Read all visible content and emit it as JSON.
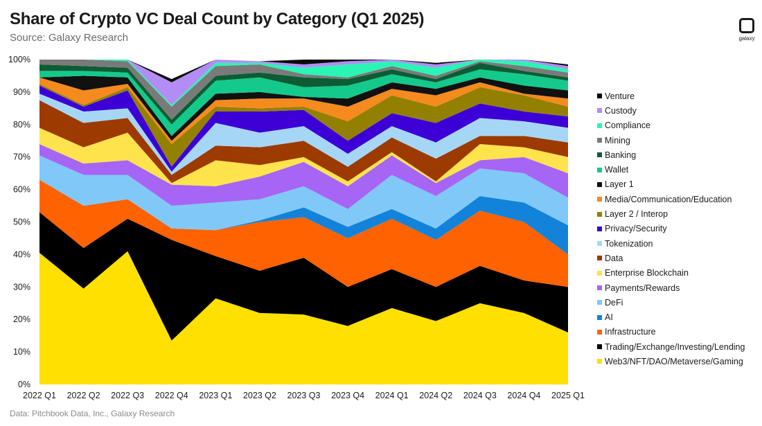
{
  "header": {
    "title": "Share of Crypto VC Deal Count by Category (Q1 2025)",
    "subtitle": "Source: Galaxy Research"
  },
  "footer": {
    "source": "Data: Pitchbook Data, Inc., Galaxy Research"
  },
  "logo": {
    "text": "galaxy",
    "icon": "galaxy-logo-icon"
  },
  "chart_data": {
    "type": "area",
    "stacked": true,
    "title": "Share of Crypto VC Deal Count by Category (Q1 2025)",
    "subtitle": "Source: Galaxy Research",
    "xlabel": "",
    "ylabel": "",
    "ylim": [
      0,
      100
    ],
    "y_ticks": [
      "0%",
      "10%",
      "20%",
      "30%",
      "40%",
      "50%",
      "60%",
      "70%",
      "80%",
      "90%",
      "100%"
    ],
    "grid": false,
    "legend_position": "right",
    "categories": [
      "2022 Q1",
      "2022 Q2",
      "2022 Q3",
      "2022 Q4",
      "2023 Q1",
      "2023 Q2",
      "2023 Q3",
      "2023 Q4",
      "2024 Q1",
      "2024 Q2",
      "2024 Q3",
      "2024 Q4",
      "2025 Q1"
    ],
    "series": [
      {
        "name": "Web3/NFT/DAO/Metaverse/Gaming",
        "color": "#FFE000",
        "values": [
          40.5,
          29.5,
          41,
          13.5,
          26.5,
          22,
          21.5,
          18,
          23.5,
          19.5,
          25,
          22,
          16
        ]
      },
      {
        "name": "Trading/Exchange/Investing/Lending",
        "color": "#000000",
        "values": [
          12.5,
          12.5,
          10,
          31,
          13,
          13,
          17.5,
          12,
          12,
          10.5,
          11.5,
          10,
          14
        ]
      },
      {
        "name": "Infrastructure",
        "color": "#FF6200",
        "values": [
          10,
          13,
          6,
          3.5,
          8,
          15,
          12.5,
          15,
          15.5,
          14.5,
          17,
          18,
          10
        ]
      },
      {
        "name": "AI",
        "color": "#1283D8",
        "values": [
          0,
          0,
          0,
          0,
          0,
          0.5,
          3,
          3.5,
          3,
          3.5,
          4.5,
          6,
          9
        ]
      },
      {
        "name": "DeFi",
        "color": "#80C8F8",
        "values": [
          7.5,
          9.5,
          7.5,
          7,
          8.5,
          6.5,
          6.5,
          5.5,
          10.5,
          10,
          8.5,
          9,
          8.5
        ]
      },
      {
        "name": "Payments/Rewards",
        "color": "#A665F5",
        "values": [
          3.5,
          3.5,
          4.5,
          6.5,
          5,
          7,
          7.5,
          7,
          6,
          4,
          2.5,
          5,
          7.5
        ]
      },
      {
        "name": "Enterprise Blockchain",
        "color": "#FFE34D",
        "values": [
          5,
          5,
          8.5,
          0.5,
          8,
          3.5,
          1.5,
          1.5,
          1,
          0.5,
          5,
          3,
          5
        ]
      },
      {
        "name": "Data",
        "color": "#9C3A00",
        "values": [
          8.5,
          7.5,
          4.5,
          2.5,
          4.5,
          5.5,
          5,
          4.5,
          4.5,
          7,
          2.5,
          3.5,
          4.5
        ]
      },
      {
        "name": "Tokenization",
        "color": "#A6D6F5",
        "values": [
          2,
          3.5,
          3,
          1,
          7,
          4.5,
          4.5,
          4,
          3.5,
          5,
          5.5,
          4.5,
          4.5
        ]
      },
      {
        "name": "Privacy/Security",
        "color": "#3C00D6",
        "values": [
          2.5,
          1.5,
          5.5,
          1.5,
          3.5,
          6.5,
          5,
          4,
          4,
          6,
          4.5,
          3,
          3.5
        ]
      },
      {
        "name": "Layer 2 / Interop",
        "color": "#948000",
        "values": [
          0.5,
          0.5,
          1,
          7,
          1.5,
          1,
          1,
          6,
          5.5,
          5,
          5,
          5,
          3
        ]
      },
      {
        "name": "Media/Communication/Education",
        "color": "#F58A1F",
        "values": [
          2,
          4.5,
          1,
          1,
          2,
          3,
          2.5,
          4.5,
          2,
          3.5,
          1.5,
          0.5,
          2.5
        ]
      },
      {
        "name": "Layer 1",
        "color": "#111111",
        "values": [
          0,
          4.5,
          2,
          1.5,
          2,
          2,
          0.5,
          2.5,
          2,
          2,
          1.5,
          2.5,
          2.5
        ]
      },
      {
        "name": "Wallet",
        "color": "#14C98C",
        "values": [
          2,
          1.5,
          1.5,
          3.5,
          4,
          4.5,
          3,
          4,
          2.5,
          2,
          2.5,
          3.5,
          3
        ]
      },
      {
        "name": "Banking",
        "color": "#0C5C35",
        "values": [
          2,
          1.5,
          1.5,
          1.5,
          1.5,
          1.5,
          3,
          2,
          1.5,
          1,
          2,
          1,
          1
        ]
      },
      {
        "name": "Mining",
        "color": "#7A7A7A",
        "values": [
          1.5,
          2,
          2,
          4,
          3,
          2.5,
          1,
          0.5,
          1,
          1,
          0.5,
          1.5,
          1.5
        ]
      },
      {
        "name": "Compliance",
        "color": "#2AF5B5",
        "values": [
          1,
          1,
          0.5,
          0.5,
          1,
          0.5,
          2,
          4,
          1.5,
          2.5,
          0.5,
          1.5,
          1
        ]
      },
      {
        "name": "Custody",
        "color": "#B38CF5",
        "values": [
          0.5,
          0,
          0,
          7,
          1,
          0.5,
          1,
          1,
          0.5,
          1,
          0.5,
          0.5,
          1
        ]
      },
      {
        "name": "Venture",
        "color": "#0A0A0A",
        "values": [
          0,
          0,
          0,
          1,
          0,
          0,
          2,
          0.5,
          0,
          0.5,
          0,
          0,
          0.5
        ]
      }
    ]
  }
}
